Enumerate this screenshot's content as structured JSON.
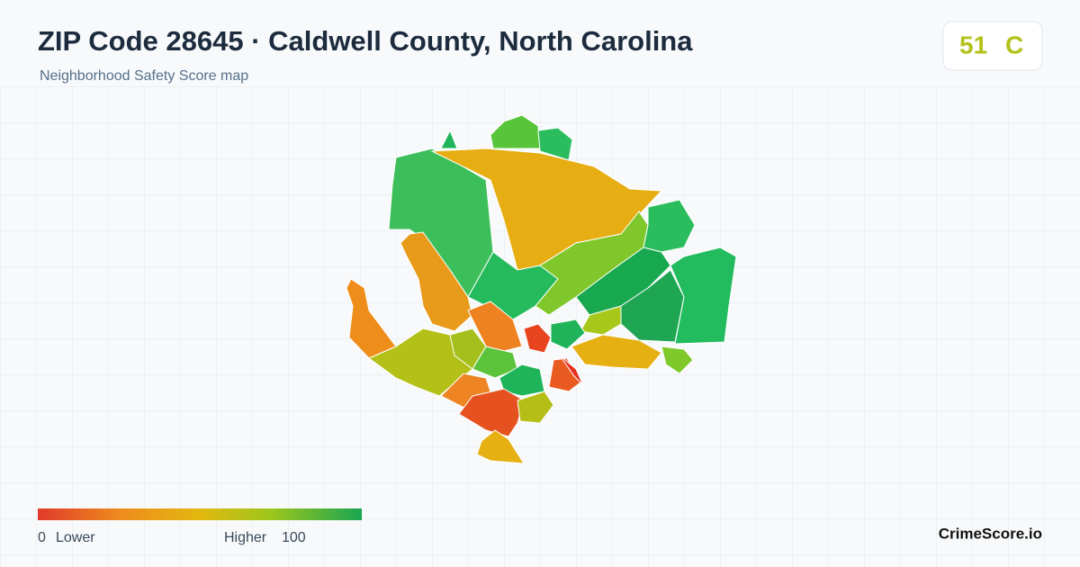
{
  "header": {
    "title": "ZIP Code 28645 · Caldwell County, North Carolina",
    "subtitle": "Neighborhood Safety Score map"
  },
  "score": {
    "value": 51,
    "grade": "C"
  },
  "legend": {
    "min": 0,
    "min_label": "Lower",
    "max_label": "Higher",
    "max": 100
  },
  "brand": "CrimeScore.io"
}
